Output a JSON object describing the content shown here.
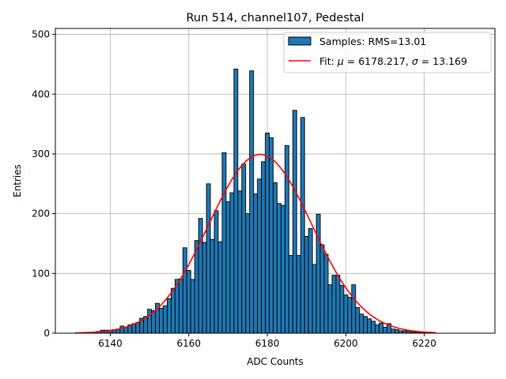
{
  "chart_data": {
    "type": "bar",
    "title": "Run 514, channel107, Pedestal",
    "xlabel": "ADC Counts",
    "ylabel": "Entries",
    "xlim": [
      6126,
      6238
    ],
    "ylim": [
      0,
      510
    ],
    "xticks": [
      6140,
      6160,
      6180,
      6200,
      6220
    ],
    "yticks": [
      0,
      100,
      200,
      300,
      400,
      500
    ],
    "grid": true,
    "legend_position": "top-right",
    "colors": {
      "bars": "#1f77b4",
      "bar_edge": "#000000",
      "fit": "#ff0000",
      "grid": "#b0b0b0"
    },
    "histogram": {
      "name": "Samples: RMS=13.01",
      "bin_width": 1,
      "bins": [
        {
          "x": 6131,
          "y": 0
        },
        {
          "x": 6132,
          "y": 0
        },
        {
          "x": 6133,
          "y": 0
        },
        {
          "x": 6134,
          "y": 1
        },
        {
          "x": 6135,
          "y": 1
        },
        {
          "x": 6136,
          "y": 2
        },
        {
          "x": 6137,
          "y": 3
        },
        {
          "x": 6138,
          "y": 5
        },
        {
          "x": 6139,
          "y": 5
        },
        {
          "x": 6140,
          "y": 5
        },
        {
          "x": 6141,
          "y": 6
        },
        {
          "x": 6142,
          "y": 7
        },
        {
          "x": 6143,
          "y": 12
        },
        {
          "x": 6144,
          "y": 10
        },
        {
          "x": 6145,
          "y": 14
        },
        {
          "x": 6146,
          "y": 16
        },
        {
          "x": 6147,
          "y": 18
        },
        {
          "x": 6148,
          "y": 25
        },
        {
          "x": 6149,
          "y": 28
        },
        {
          "x": 6150,
          "y": 40
        },
        {
          "x": 6151,
          "y": 38
        },
        {
          "x": 6152,
          "y": 50
        },
        {
          "x": 6153,
          "y": 42
        },
        {
          "x": 6154,
          "y": 46
        },
        {
          "x": 6155,
          "y": 58
        },
        {
          "x": 6156,
          "y": 75
        },
        {
          "x": 6157,
          "y": 90
        },
        {
          "x": 6158,
          "y": 91
        },
        {
          "x": 6159,
          "y": 143
        },
        {
          "x": 6160,
          "y": 105
        },
        {
          "x": 6161,
          "y": 90
        },
        {
          "x": 6162,
          "y": 155
        },
        {
          "x": 6163,
          "y": 192
        },
        {
          "x": 6164,
          "y": 152
        },
        {
          "x": 6165,
          "y": 250
        },
        {
          "x": 6166,
          "y": 157
        },
        {
          "x": 6167,
          "y": 205
        },
        {
          "x": 6168,
          "y": 153
        },
        {
          "x": 6169,
          "y": 302
        },
        {
          "x": 6170,
          "y": 220
        },
        {
          "x": 6171,
          "y": 235
        },
        {
          "x": 6172,
          "y": 442
        },
        {
          "x": 6173,
          "y": 238
        },
        {
          "x": 6174,
          "y": 283
        },
        {
          "x": 6175,
          "y": 200
        },
        {
          "x": 6176,
          "y": 439
        },
        {
          "x": 6177,
          "y": 233
        },
        {
          "x": 6178,
          "y": 258
        },
        {
          "x": 6179,
          "y": 287
        },
        {
          "x": 6180,
          "y": 335
        },
        {
          "x": 6181,
          "y": 327
        },
        {
          "x": 6182,
          "y": 252
        },
        {
          "x": 6183,
          "y": 217
        },
        {
          "x": 6184,
          "y": 214
        },
        {
          "x": 6185,
          "y": 314
        },
        {
          "x": 6186,
          "y": 130
        },
        {
          "x": 6187,
          "y": 373
        },
        {
          "x": 6188,
          "y": 130
        },
        {
          "x": 6189,
          "y": 361
        },
        {
          "x": 6190,
          "y": 162
        },
        {
          "x": 6191,
          "y": 175
        },
        {
          "x": 6192,
          "y": 115
        },
        {
          "x": 6193,
          "y": 199
        },
        {
          "x": 6194,
          "y": 148
        },
        {
          "x": 6195,
          "y": 132
        },
        {
          "x": 6196,
          "y": 81
        },
        {
          "x": 6197,
          "y": 97
        },
        {
          "x": 6198,
          "y": 97
        },
        {
          "x": 6199,
          "y": 80
        },
        {
          "x": 6200,
          "y": 64
        },
        {
          "x": 6201,
          "y": 60
        },
        {
          "x": 6202,
          "y": 81
        },
        {
          "x": 6203,
          "y": 43
        },
        {
          "x": 6204,
          "y": 32
        },
        {
          "x": 6205,
          "y": 28
        },
        {
          "x": 6206,
          "y": 24
        },
        {
          "x": 6207,
          "y": 20
        },
        {
          "x": 6208,
          "y": 14
        },
        {
          "x": 6209,
          "y": 17
        },
        {
          "x": 6210,
          "y": 10
        },
        {
          "x": 6211,
          "y": 16
        },
        {
          "x": 6212,
          "y": 7
        },
        {
          "x": 6213,
          "y": 6
        },
        {
          "x": 6214,
          "y": 4
        },
        {
          "x": 6215,
          "y": 4
        },
        {
          "x": 6216,
          "y": 3
        },
        {
          "x": 6217,
          "y": 2
        },
        {
          "x": 6218,
          "y": 2
        },
        {
          "x": 6219,
          "y": 1
        },
        {
          "x": 6220,
          "y": 1
        },
        {
          "x": 6221,
          "y": 0
        },
        {
          "x": 6222,
          "y": 0
        }
      ]
    },
    "fit": {
      "type": "line",
      "name": "Fit: μ = 6178.217, σ = 13.169",
      "name_prefix": "Fit: ",
      "mu_symbol": "μ",
      "mu_text": " = 6178.217, ",
      "sigma_symbol": "σ",
      "sigma_text": " = 13.169",
      "mu": 6178.217,
      "sigma": 13.169,
      "amplitude": 299,
      "x_range": [
        6131,
        6223
      ]
    }
  }
}
